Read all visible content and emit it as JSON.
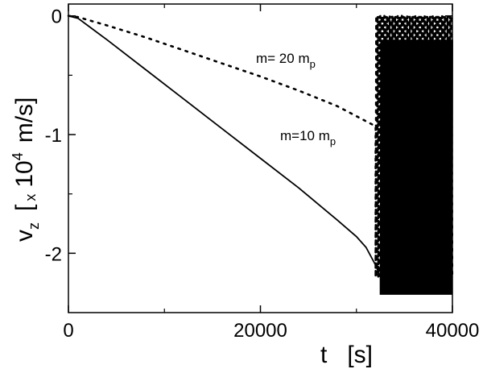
{
  "chart_data": {
    "type": "line",
    "title": "",
    "xlabel": "t   [s]",
    "ylabel_main": "v",
    "ylabel_sub": "z",
    "ylabel_rest_open": "[",
    "ylabel_mult": "x",
    "ylabel_base": "10",
    "ylabel_exp": "4",
    "ylabel_unit": "m/s]",
    "xlim": [
      0,
      40000
    ],
    "ylim": [
      -2.5,
      0.1
    ],
    "x_ticks": [
      0,
      20000,
      40000
    ],
    "x_tick_labels": [
      "0",
      "20000",
      "40000"
    ],
    "x_minor_ticks": [
      10000,
      30000
    ],
    "y_ticks": [
      0,
      -1,
      -2
    ],
    "y_tick_labels": [
      "0",
      "-1",
      "-2"
    ],
    "y_minor_ticks": [
      -0.5,
      -1.5
    ],
    "grid": false,
    "series": [
      {
        "label_main": "m=10 m",
        "label_sub": "p",
        "style": "solid",
        "x": [
          0,
          1000,
          2000,
          4000,
          8000,
          12000,
          16000,
          20000,
          24000,
          28000,
          30000,
          31000,
          32000,
          32500
        ],
        "y": [
          0,
          -0.02,
          -0.08,
          -0.2,
          -0.45,
          -0.7,
          -0.95,
          -1.2,
          -1.45,
          -1.72,
          -1.86,
          -1.95,
          -2.1,
          -2.2
        ],
        "oscillation": {
          "x_start": 32500,
          "x_end": 40000,
          "y_min": -2.35,
          "y_max": -0.2,
          "period": 120
        }
      },
      {
        "label_main": "m= 20 m",
        "label_sub": "p",
        "style": "dotted",
        "x": [
          0,
          1000,
          4000,
          8000,
          12000,
          16000,
          20000,
          24000,
          28000,
          32000
        ],
        "y": [
          0,
          -0.01,
          -0.08,
          -0.18,
          -0.29,
          -0.4,
          -0.51,
          -0.63,
          -0.76,
          -0.93
        ],
        "oscillation": {
          "x_start": 32000,
          "x_end": 40000,
          "y_min": -2.2,
          "y_max": 0,
          "period": 140
        }
      }
    ]
  }
}
